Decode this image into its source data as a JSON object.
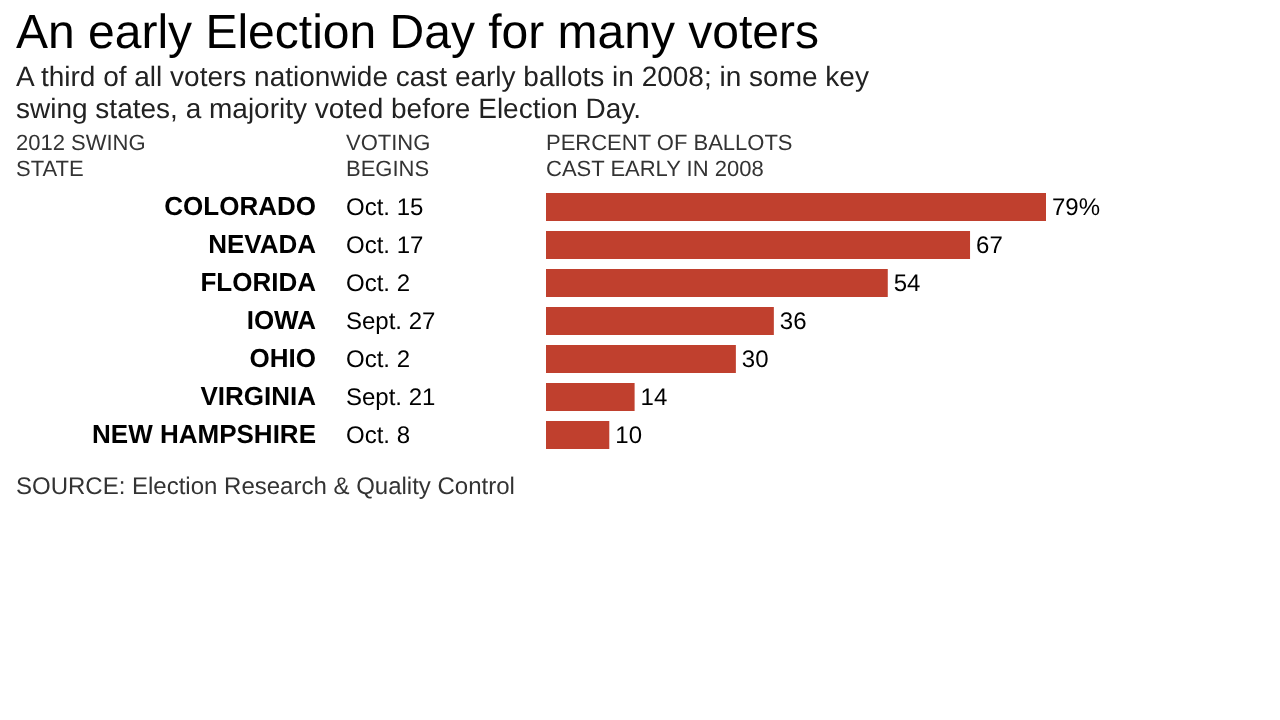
{
  "chart_data": {
    "type": "bar",
    "orientation": "horizontal",
    "title": "An early Election Day for many voters",
    "subtitle": "A third of all voters nationwide cast early ballots in 2008; in some key swing states, a majority voted before Election Day.",
    "categories": [
      "COLORADO",
      "NEVADA",
      "FLORIDA",
      "IOWA",
      "OHIO",
      "VIRGINIA",
      "NEW HAMPSHIRE"
    ],
    "values": [
      79,
      67,
      54,
      36,
      30,
      14,
      10
    ],
    "value_labels": [
      "79%",
      "67",
      "54",
      "36",
      "30",
      "14",
      "10"
    ],
    "color": "#c0402e",
    "annotations": [
      "2012 SWING STATE",
      "VOTING BEGINS",
      "PERCENT OF BALLOTS CAST EARLY IN 2008",
      "Oct. 15",
      "Oct. 17",
      "Oct. 2",
      "Sept. 27",
      "Oct. 2",
      "Sept. 21",
      "Oct. 8",
      "SOURCE: Election Research & Quality Control"
    ]
  }
}
